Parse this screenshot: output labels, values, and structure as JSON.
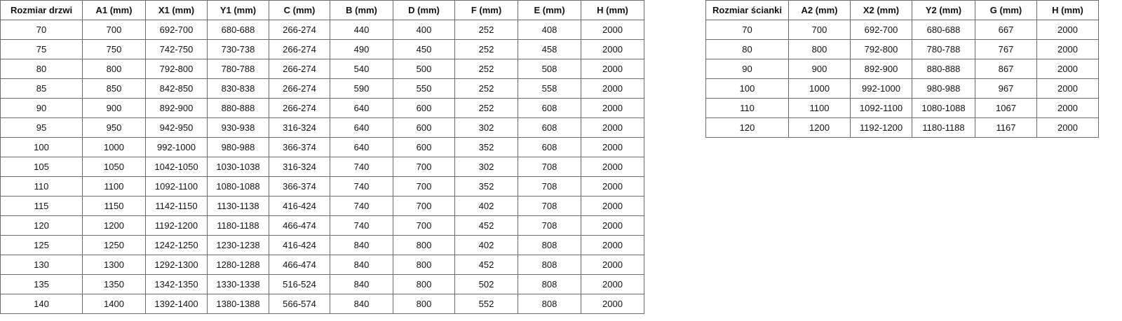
{
  "door_table": {
    "headers": [
      "Rozmiar drzwi",
      "A1 (mm)",
      "X1 (mm)",
      "Y1 (mm)",
      "C (mm)",
      "B (mm)",
      "D (mm)",
      "F (mm)",
      "E (mm)",
      "H (mm)"
    ],
    "rows": [
      [
        "70",
        "700",
        "692-700",
        "680-688",
        "266-274",
        "440",
        "400",
        "252",
        "408",
        "2000"
      ],
      [
        "75",
        "750",
        "742-750",
        "730-738",
        "266-274",
        "490",
        "450",
        "252",
        "458",
        "2000"
      ],
      [
        "80",
        "800",
        "792-800",
        "780-788",
        "266-274",
        "540",
        "500",
        "252",
        "508",
        "2000"
      ],
      [
        "85",
        "850",
        "842-850",
        "830-838",
        "266-274",
        "590",
        "550",
        "252",
        "558",
        "2000"
      ],
      [
        "90",
        "900",
        "892-900",
        "880-888",
        "266-274",
        "640",
        "600",
        "252",
        "608",
        "2000"
      ],
      [
        "95",
        "950",
        "942-950",
        "930-938",
        "316-324",
        "640",
        "600",
        "302",
        "608",
        "2000"
      ],
      [
        "100",
        "1000",
        "992-1000",
        "980-988",
        "366-374",
        "640",
        "600",
        "352",
        "608",
        "2000"
      ],
      [
        "105",
        "1050",
        "1042-1050",
        "1030-1038",
        "316-324",
        "740",
        "700",
        "302",
        "708",
        "2000"
      ],
      [
        "110",
        "1100",
        "1092-1100",
        "1080-1088",
        "366-374",
        "740",
        "700",
        "352",
        "708",
        "2000"
      ],
      [
        "115",
        "1150",
        "1142-1150",
        "1130-1138",
        "416-424",
        "740",
        "700",
        "402",
        "708",
        "2000"
      ],
      [
        "120",
        "1200",
        "1192-1200",
        "1180-1188",
        "466-474",
        "740",
        "700",
        "452",
        "708",
        "2000"
      ],
      [
        "125",
        "1250",
        "1242-1250",
        "1230-1238",
        "416-424",
        "840",
        "800",
        "402",
        "808",
        "2000"
      ],
      [
        "130",
        "1300",
        "1292-1300",
        "1280-1288",
        "466-474",
        "840",
        "800",
        "452",
        "808",
        "2000"
      ],
      [
        "135",
        "1350",
        "1342-1350",
        "1330-1338",
        "516-524",
        "840",
        "800",
        "502",
        "808",
        "2000"
      ],
      [
        "140",
        "1400",
        "1392-1400",
        "1380-1388",
        "566-574",
        "840",
        "800",
        "552",
        "808",
        "2000"
      ]
    ]
  },
  "wall_table": {
    "headers": [
      "Rozmiar ścianki",
      "A2 (mm)",
      "X2 (mm)",
      "Y2 (mm)",
      "G (mm)",
      "H (mm)"
    ],
    "rows": [
      [
        "70",
        "700",
        "692-700",
        "680-688",
        "667",
        "2000"
      ],
      [
        "80",
        "800",
        "792-800",
        "780-788",
        "767",
        "2000"
      ],
      [
        "90",
        "900",
        "892-900",
        "880-888",
        "867",
        "2000"
      ],
      [
        "100",
        "1000",
        "992-1000",
        "980-988",
        "967",
        "2000"
      ],
      [
        "110",
        "1100",
        "1092-1100",
        "1080-1088",
        "1067",
        "2000"
      ],
      [
        "120",
        "1200",
        "1192-1200",
        "1180-1188",
        "1167",
        "2000"
      ]
    ]
  }
}
